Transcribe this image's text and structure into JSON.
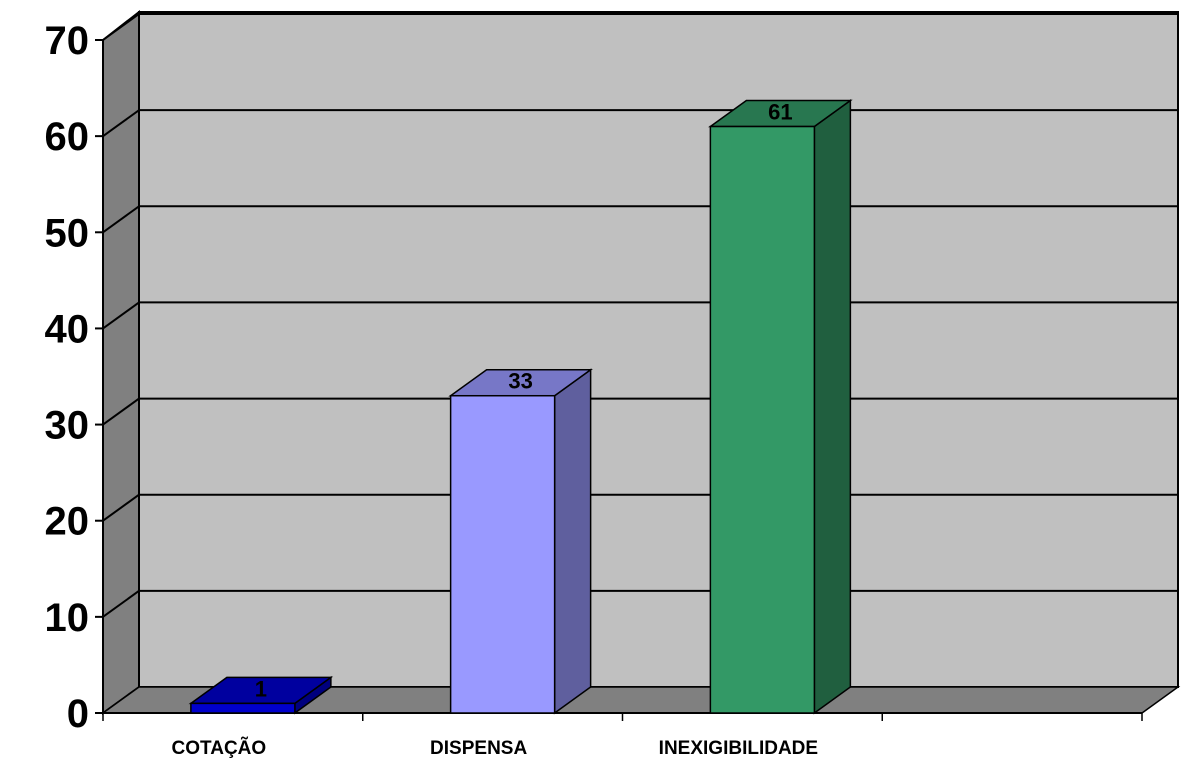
{
  "chart_data": {
    "type": "bar",
    "categories": [
      "COTAÇÃO",
      "DISPENSA",
      "INEXIGIBILIDADE"
    ],
    "values": [
      1,
      33,
      61
    ],
    "value_labels": [
      "1",
      "33",
      "61"
    ],
    "colors": [
      "#0000cc",
      "#9999ff",
      "#339966"
    ],
    "ylim": [
      0,
      70
    ],
    "yticks": [
      "0",
      "10",
      "20",
      "30",
      "40",
      "50",
      "60",
      "70"
    ],
    "grid": true,
    "legend": "none",
    "style": "3d-column"
  }
}
